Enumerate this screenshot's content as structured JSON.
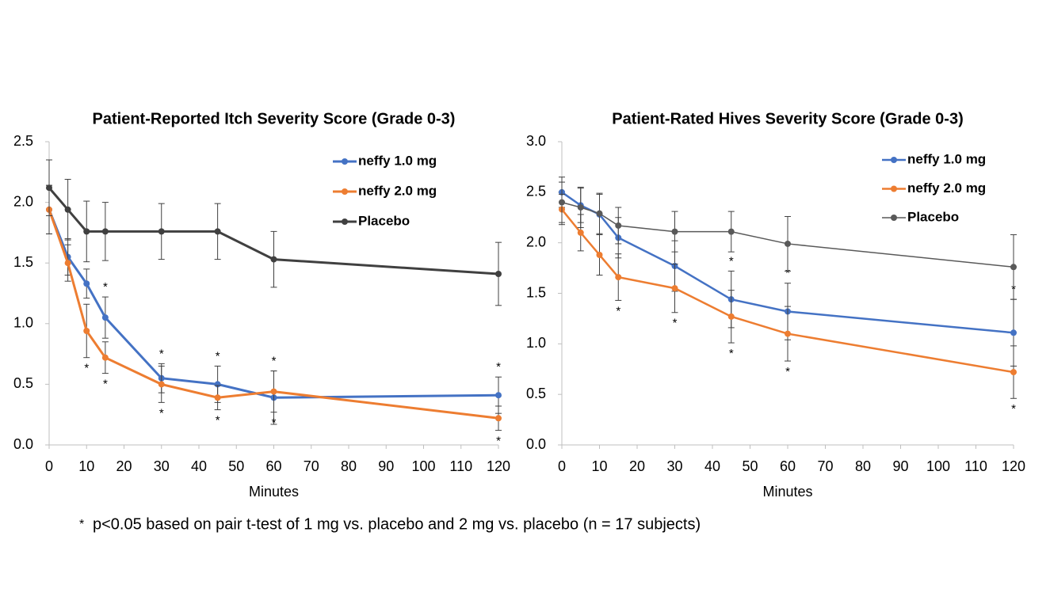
{
  "chart_data": [
    {
      "type": "line",
      "title": "Patient-Reported Itch Severity Score (Grade 0-3)",
      "x_label": "Minutes",
      "x": [
        0,
        5,
        10,
        15,
        30,
        45,
        60,
        120
      ],
      "xlim": [
        0,
        120
      ],
      "xticks": [
        0,
        10,
        20,
        30,
        40,
        50,
        60,
        70,
        80,
        90,
        100,
        110,
        120
      ],
      "ylim": [
        0,
        2.5
      ],
      "yticks": [
        {
          "value": 0,
          "label": "0.0"
        },
        0.5,
        {
          "value": 1,
          "label": "1.0"
        },
        1.5,
        {
          "value": 2,
          "label": "2.0"
        },
        2.5
      ],
      "grid": false,
      "legend": "upper right",
      "series": [
        {
          "name": "neffy 1.0 mg",
          "color": "#4472c4",
          "line_width": 3,
          "values": [
            1.94,
            1.55,
            1.33,
            1.05,
            0.55,
            0.5,
            0.39,
            0.41
          ],
          "errors": [
            0.2,
            0.15,
            0.12,
            0.17,
            0.12,
            0.15,
            0.22,
            0.15
          ],
          "sig_labels": [
            null,
            null,
            null,
            "*",
            "*",
            "*",
            "*",
            "*"
          ],
          "sig_position": "above"
        },
        {
          "name": "neffy 2.0 mg",
          "color": "#ed7d31",
          "line_width": 3,
          "values": [
            1.94,
            1.5,
            0.94,
            0.72,
            0.5,
            0.39,
            0.44,
            0.22
          ],
          "errors": [
            0.2,
            0.15,
            0.22,
            0.13,
            0.15,
            0.1,
            0.17,
            0.1
          ],
          "sig_labels": [
            null,
            null,
            "*",
            "*",
            "*",
            "*",
            "*",
            "*"
          ],
          "sig_position": "below"
        },
        {
          "name": "Placebo",
          "color": "#404040",
          "line_width": 3,
          "values": [
            2.12,
            1.94,
            1.76,
            1.76,
            1.76,
            1.76,
            1.53,
            1.41
          ],
          "errors": [
            0.23,
            0.25,
            0.25,
            0.24,
            0.23,
            0.23,
            0.23,
            0.26
          ],
          "sig_labels": [
            null,
            null,
            null,
            null,
            null,
            null,
            null,
            null
          ],
          "sig_position": "above"
        }
      ]
    },
    {
      "type": "line",
      "title": "Patient-Rated Hives Severity Score (Grade 0-3)",
      "x_label": "Minutes",
      "x": [
        0,
        5,
        10,
        15,
        30,
        45,
        60,
        120
      ],
      "xlim": [
        0,
        120
      ],
      "xticks": [
        0,
        10,
        20,
        30,
        40,
        50,
        60,
        70,
        80,
        90,
        100,
        110,
        120
      ],
      "ylim": [
        0,
        3
      ],
      "yticks": [
        {
          "value": 0,
          "label": "0.0"
        },
        0.5,
        {
          "value": 1,
          "label": "1.0"
        },
        1.5,
        {
          "value": 2,
          "label": "2.0"
        },
        2.5,
        {
          "value": 3,
          "label": "3.0"
        }
      ],
      "grid": false,
      "legend": "upper right",
      "series": [
        {
          "name": "neffy 1.0 mg",
          "color": "#4472c4",
          "line_width": 2.5,
          "values": [
            2.5,
            2.37,
            2.28,
            2.05,
            1.77,
            1.44,
            1.32,
            1.11
          ],
          "errors": [
            0.15,
            0.17,
            0.2,
            0.2,
            0.25,
            0.28,
            0.28,
            0.33
          ],
          "sig_labels": [
            null,
            null,
            null,
            null,
            null,
            "*",
            "*",
            "*"
          ],
          "sig_position": "above"
        },
        {
          "name": "neffy 2.0 mg",
          "color": "#ed7d31",
          "line_width": 2.5,
          "values": [
            2.33,
            2.1,
            1.88,
            1.66,
            1.55,
            1.27,
            1.1,
            0.72
          ],
          "errors": [
            0.15,
            0.18,
            0.2,
            0.23,
            0.24,
            0.26,
            0.27,
            0.26
          ],
          "sig_labels": [
            null,
            null,
            null,
            "*",
            "*",
            "*",
            "*",
            "*"
          ],
          "sig_position": "below"
        },
        {
          "name": "Placebo",
          "color": "#595959",
          "line_width": 1.5,
          "values": [
            2.4,
            2.35,
            2.29,
            2.17,
            2.11,
            2.11,
            1.99,
            1.76
          ],
          "errors": [
            0.2,
            0.2,
            0.2,
            0.18,
            0.2,
            0.2,
            0.27,
            0.32
          ],
          "sig_labels": [
            null,
            null,
            null,
            null,
            null,
            null,
            null,
            null
          ],
          "sig_position": "above"
        }
      ]
    }
  ],
  "footnote": {
    "marker": "*",
    "marker_color": "#e00000",
    "text": "p<0.05 based on pair t-test of 1 mg vs. placebo and 2 mg vs. placebo (n = 17 subjects)"
  }
}
